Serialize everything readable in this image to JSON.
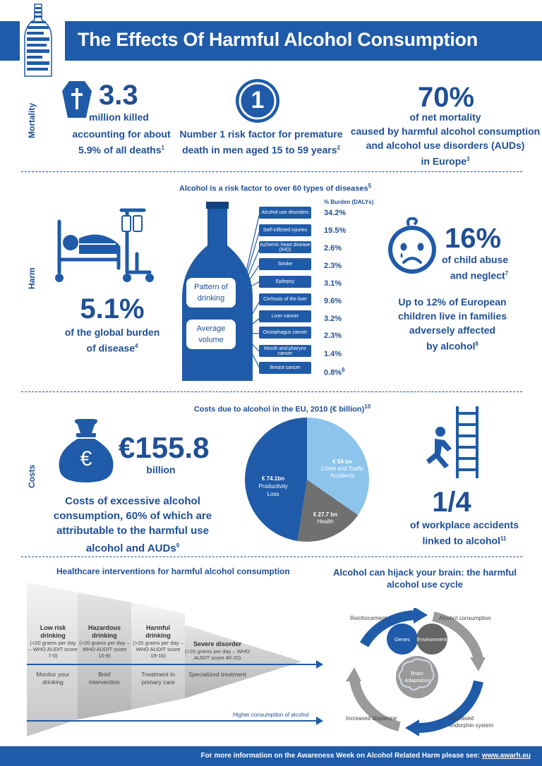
{
  "header": {
    "title": "The Effects Of Harmful Alcohol Consumption"
  },
  "sections": {
    "mortality": "Mortality",
    "harm": "Harm",
    "costs": "Costs"
  },
  "mortality": {
    "stat1": {
      "value": "3.3",
      "unit": "million killed",
      "line1": "accounting for about",
      "line2": "5.9% of all deaths",
      "ref": "1"
    },
    "stat2": {
      "icon_text": "1",
      "line1": "Number 1 risk factor for premature",
      "line2": "death in men aged 15 to 59 years",
      "ref": "2"
    },
    "stat3": {
      "value": "70%",
      "unit": "of net mortality",
      "line1": "caused by harmful alcohol consumption",
      "line2": "and alcohol use disorders (AUDs)",
      "line3": "in Europe",
      "ref": "3"
    }
  },
  "harm": {
    "diseases_title": "Alcohol is a risk factor to over 60 types of diseases",
    "diseases_ref": "5",
    "burden_header": "% Burden (DALYs)",
    "bottle_label1": "Pattern of drinking",
    "bottle_label2": "Average volume",
    "diseases": [
      {
        "name": "Alcohol use disorders",
        "value": "34.2%"
      },
      {
        "name": "Self-inflicted injuries",
        "value": "19.5%"
      },
      {
        "name": "Ischemic heart disease (IHD)",
        "value": "2.6%"
      },
      {
        "name": "Stroke",
        "value": "2.3%"
      },
      {
        "name": "Epilepsy",
        "value": "3.1%"
      },
      {
        "name": "Cirrhosis of the liver",
        "value": "9.6%"
      },
      {
        "name": "Liver cancer",
        "value": "3.2%"
      },
      {
        "name": "Oesophagus cancer",
        "value": "2.3%"
      },
      {
        "name": "Mouth and pharynx cancer",
        "value": "1.4%"
      },
      {
        "name": "Breast cancer",
        "value": "0.8%",
        "ref": "6"
      }
    ],
    "global": {
      "value": "5.1%",
      "line1": "of the global burden",
      "line2": "of disease",
      "ref": "4"
    },
    "child": {
      "value": "16%",
      "line1": "of child abuse",
      "line2": "and neglect",
      "ref": "7"
    },
    "children": {
      "line1": "Up to 12% of European",
      "line2": "children live in families",
      "line3": "adversely affected",
      "line4": "by alcohol",
      "ref": "8"
    }
  },
  "costs": {
    "title": "Costs due to alcohol in the EU, 2010 (€ billion)",
    "title_ref": "10",
    "bag_symbol": "€",
    "total": {
      "value": "€155.8",
      "unit": "billion"
    },
    "desc": {
      "line1": "Costs of excessive alcohol",
      "line2": "consumption, 60% of which are",
      "line3": "attributable to the harmful use",
      "line4": "alcohol and AUDs",
      "ref": "9"
    },
    "workplace": {
      "value": "1/4",
      "line1": "of workplace accidents",
      "line2": "linked to alcohol",
      "ref": "11"
    }
  },
  "chart_data": {
    "type": "pie",
    "title": "Costs due to alcohol in the EU, 2010 (€ billion)",
    "slices": [
      {
        "amount": "€ 54 bn",
        "label": "Crime and Traffic Accidents",
        "value": 54,
        "color": "#8cc4ec"
      },
      {
        "amount": "€ 27.7 bn",
        "label": "Health",
        "value": 27.7,
        "color": "#707070"
      },
      {
        "amount": "€ 74.1bn",
        "label": "Productivity Loss",
        "value": 74.1,
        "color": "#1f5ba8"
      }
    ]
  },
  "interventions": {
    "title": "Healthcare interventions for harmful alcohol consumption",
    "stages": [
      {
        "title": "Low risk drinking",
        "desc": "(<20 grams per day – WHO AUDIT score 7-0)",
        "intervention": "Monitor your drinking"
      },
      {
        "title": "Hazardous drinking",
        "desc": "(>20 grams per day – WHO AUDIT score 15-8)",
        "intervention": "Brief intervention"
      },
      {
        "title": "Harmful drinking",
        "desc": "(>20 grams per day – WHO AUDIT score 19-16)",
        "intervention": "Treatment in primary care"
      },
      {
        "title": "Severe disorder",
        "desc": "(>20 grams per day – WHO AUDIT score 40-20)",
        "intervention": "Specialized treatment"
      }
    ],
    "axis_label": "Higher consumption of alcohol"
  },
  "brain": {
    "title_line1": "Alcohol can hijack your brain: the harmful",
    "title_line2": "alcohol use cycle",
    "reinforcement": "Reinforcement",
    "consumption": "Alcohol consumption",
    "genes": "Genes",
    "environment": "Environment",
    "adaptation": "Brain Adaptation",
    "dopamine": "Increased dopamine",
    "endorphin": "Increased endorphin system"
  },
  "footer": {
    "text": "For more information on the Awareness Week on Alcohol Related Harm please see:",
    "link": "www.awarh.eu"
  }
}
